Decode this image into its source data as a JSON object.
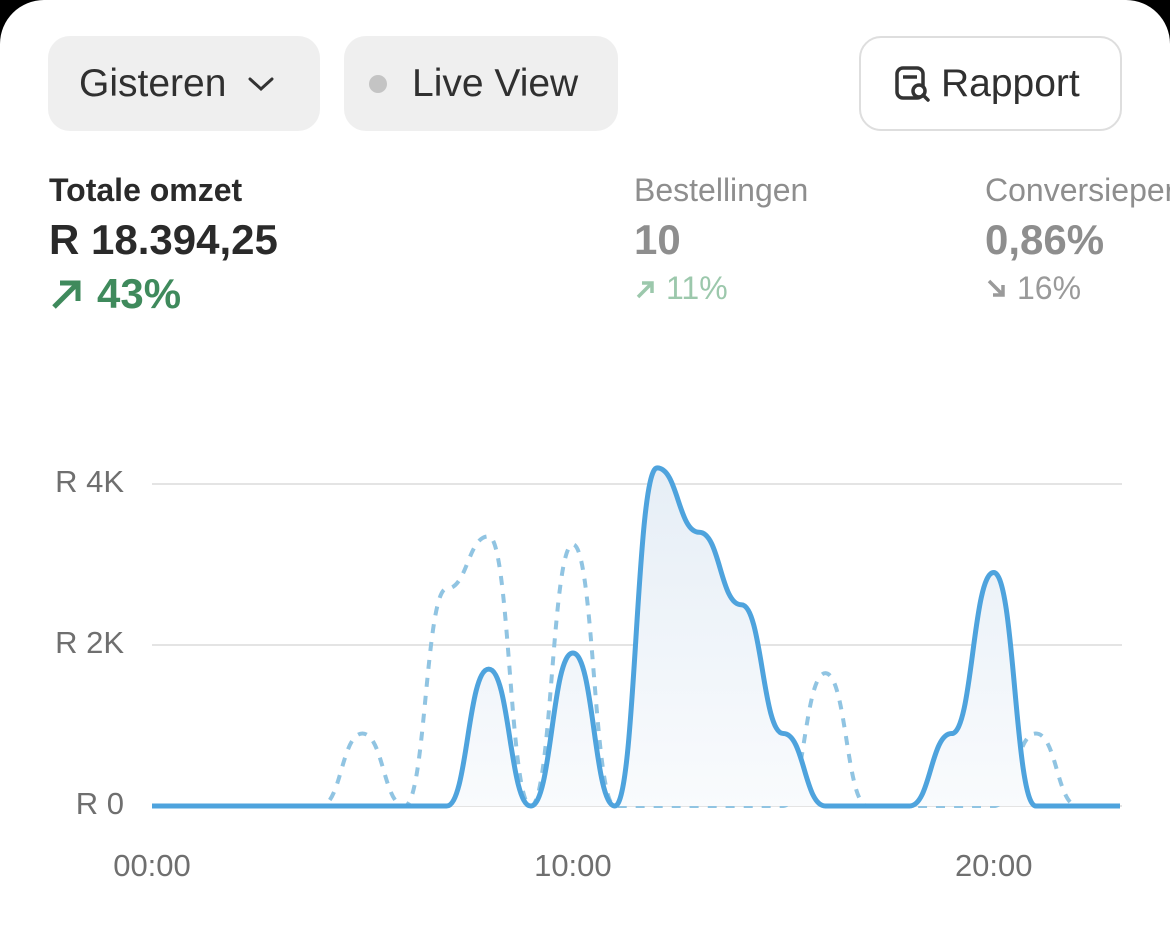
{
  "toolbar": {
    "period": "Gisteren",
    "live": "Live View",
    "report": "Rapport"
  },
  "metrics": [
    {
      "label": "Totale omzet",
      "value": "R 18.394,25",
      "change": "43%"
    },
    {
      "label": "Bestellingen",
      "value": "10",
      "change": "11%"
    },
    {
      "label": "Conversiepercentage",
      "value": "0,86%",
      "change": "16%"
    }
  ],
  "chart_data": {
    "type": "line",
    "x": [
      0,
      1,
      2,
      3,
      4,
      5,
      6,
      7,
      8,
      9,
      10,
      11,
      12,
      13,
      14,
      15,
      16,
      17,
      18,
      19,
      20,
      21,
      22,
      23
    ],
    "series": [
      {
        "color": "#4ea3dd",
        "style": "solid",
        "fill": true,
        "values": [
          0,
          0,
          0,
          0,
          0,
          0,
          0,
          0,
          1700,
          0,
          1900,
          0,
          4200,
          3400,
          2500,
          900,
          0,
          0,
          0,
          900,
          2900,
          0,
          0,
          0
        ]
      },
      {
        "color": "#90c4e2",
        "style": "dashed",
        "fill": false,
        "values": [
          0,
          0,
          0,
          0,
          0,
          900,
          0,
          2700,
          3350,
          0,
          3250,
          0,
          0,
          0,
          0,
          0,
          1650,
          0,
          0,
          0,
          0,
          900,
          0,
          0
        ]
      }
    ],
    "xlim": [
      0,
      23
    ],
    "xticks": [
      {
        "value": 0,
        "label": "00:00"
      },
      {
        "value": 10,
        "label": "10:00"
      },
      {
        "value": 20,
        "label": "20:00"
      }
    ],
    "ylim": [
      0,
      4000
    ],
    "yticks": [
      {
        "value": 0,
        "label": "R 0"
      },
      {
        "value": 2000,
        "label": "R 2K"
      },
      {
        "value": 4000,
        "label": "R 4K"
      }
    ],
    "grid": true
  }
}
